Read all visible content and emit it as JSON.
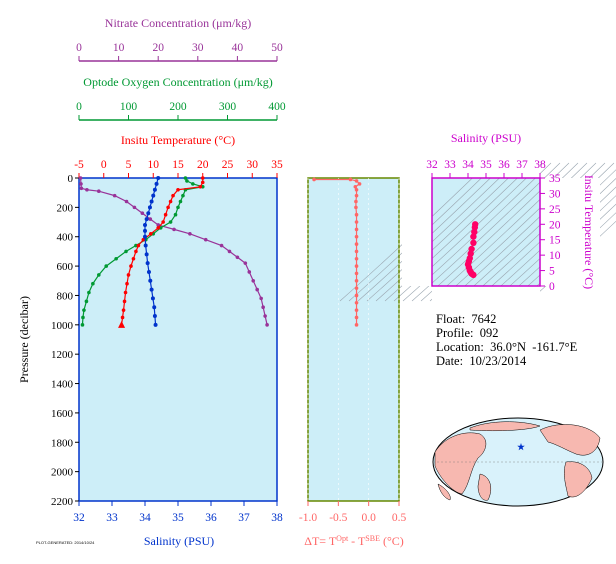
{
  "colors": {
    "nitrate": "#993399",
    "oxygen": "#009933",
    "temperature": "#ff0000",
    "salinity": "#0033cc",
    "dt": "#ff6666",
    "ts": "#cc00cc",
    "ts_points": "#ff0066",
    "panel_bg": "#cdeef8",
    "frame_main": "#0033cc",
    "frame_dt": "#668800",
    "land": "#f7b8b0",
    "ocean": "#d9f2fb",
    "star": "#0033cc"
  },
  "chart_data": [
    {
      "type": "line",
      "panel": "profiles",
      "ylabel": "Pressure (decibar)",
      "ylim": [
        2200,
        0
      ],
      "yticks": [
        0,
        200,
        400,
        600,
        800,
        1000,
        1200,
        1400,
        1600,
        1800,
        2000,
        2200
      ],
      "axes": {
        "nitrate": {
          "label": "Nitrate Concentration (μm/kg)",
          "range": [
            0,
            50
          ],
          "ticks": [
            0,
            10,
            20,
            30,
            40,
            50
          ]
        },
        "oxygen": {
          "label": "Optode Oxygen Concentration (μm/kg)",
          "range": [
            0,
            400
          ],
          "ticks": [
            0,
            100,
            200,
            300,
            400
          ]
        },
        "temperature": {
          "label": "Insitu Temperature (°C)",
          "range": [
            -5,
            35
          ],
          "ticks": [
            -5,
            0,
            5,
            10,
            15,
            20,
            25,
            30,
            35
          ]
        },
        "salinity": {
          "label": "Salinity (PSU)",
          "range": [
            32,
            38
          ],
          "ticks": [
            32,
            33,
            34,
            35,
            36,
            37,
            38
          ]
        }
      },
      "series": [
        {
          "key": "nitrate",
          "axis": "nitrate",
          "points": [
            [
              0.4,
              0
            ],
            [
              0.5,
              40
            ],
            [
              0.6,
              70
            ],
            [
              2,
              80
            ],
            [
              5,
              90
            ],
            [
              9,
              120
            ],
            [
              12,
              160
            ],
            [
              14,
              200
            ],
            [
              16,
              240
            ],
            [
              18,
              280
            ],
            [
              20,
              320
            ],
            [
              24,
              350
            ],
            [
              28,
              380
            ],
            [
              32,
              420
            ],
            [
              36,
              460
            ],
            [
              38,
              500
            ],
            [
              40,
              540
            ],
            [
              42,
              580
            ],
            [
              43,
              640
            ],
            [
              44,
              700
            ],
            [
              45,
              760
            ],
            [
              46,
              820
            ],
            [
              46.5,
              880
            ],
            [
              47,
              940
            ],
            [
              47.5,
              1000
            ]
          ]
        },
        {
          "key": "oxygen",
          "axis": "oxygen",
          "points": [
            [
              215,
              0
            ],
            [
              218,
              20
            ],
            [
              230,
              40
            ],
            [
              250,
              60
            ],
            [
              215,
              80
            ],
            [
              210,
              120
            ],
            [
              205,
              160
            ],
            [
              200,
              200
            ],
            [
              195,
              250
            ],
            [
              185,
              300
            ],
            [
              165,
              340
            ],
            [
              150,
              380
            ],
            [
              135,
              420
            ],
            [
              115,
              460
            ],
            [
              95,
              500
            ],
            [
              75,
              550
            ],
            [
              55,
              600
            ],
            [
              40,
              660
            ],
            [
              28,
              720
            ],
            [
              20,
              780
            ],
            [
              15,
              840
            ],
            [
              10,
              900
            ],
            [
              8,
              950
            ],
            [
              7,
              1000
            ]
          ]
        },
        {
          "key": "temperature",
          "axis": "temperature",
          "points": [
            [
              20,
              0
            ],
            [
              20,
              30
            ],
            [
              19.5,
              60
            ],
            [
              15,
              80
            ],
            [
              14,
              120
            ],
            [
              13.5,
              160
            ],
            [
              13,
              200
            ],
            [
              12.5,
              250
            ],
            [
              12,
              300
            ],
            [
              11,
              340
            ],
            [
              9.5,
              380
            ],
            [
              8,
              420
            ],
            [
              7,
              460
            ],
            [
              6.5,
              500
            ],
            [
              6,
              550
            ],
            [
              5.5,
              600
            ],
            [
              5,
              660
            ],
            [
              4.7,
              720
            ],
            [
              4.4,
              780
            ],
            [
              4.2,
              840
            ],
            [
              4,
              900
            ],
            [
              3.8,
              950
            ],
            [
              3.6,
              1000
            ]
          ]
        },
        {
          "key": "salinity",
          "axis": "salinity",
          "points": [
            [
              34.4,
              0
            ],
            [
              34.35,
              40
            ],
            [
              34.3,
              80
            ],
            [
              34.25,
              120
            ],
            [
              34.2,
              160
            ],
            [
              34.15,
              200
            ],
            [
              34.1,
              240
            ],
            [
              34.05,
              280
            ],
            [
              34.0,
              320
            ],
            [
              34.0,
              360
            ],
            [
              34.0,
              400
            ],
            [
              34.02,
              460
            ],
            [
              34.05,
              520
            ],
            [
              34.08,
              580
            ],
            [
              34.12,
              640
            ],
            [
              34.16,
              700
            ],
            [
              34.2,
              760
            ],
            [
              34.24,
              820
            ],
            [
              34.28,
              880
            ],
            [
              34.3,
              940
            ],
            [
              34.32,
              1000
            ]
          ]
        }
      ]
    },
    {
      "type": "line",
      "panel": "dt",
      "xlabel": "ΔT= T^Opt - T^SBE (°C)",
      "xlim": [
        -1.0,
        0.5
      ],
      "xticks": [
        -1.0,
        -0.5,
        0.0,
        0.5
      ],
      "xticklabels": [
        "-1.0",
        "-0.5",
        "0.0",
        "0.5"
      ],
      "ylim": [
        2200,
        0
      ],
      "series": [
        {
          "key": "dt",
          "points": [
            [
              -0.9,
              10
            ],
            [
              -0.3,
              10
            ],
            [
              -0.2,
              20
            ],
            [
              -0.15,
              40
            ],
            [
              -0.22,
              60
            ],
            [
              -0.2,
              80
            ],
            [
              -0.2,
              120
            ],
            [
              -0.21,
              160
            ],
            [
              -0.21,
              200
            ],
            [
              -0.2,
              250
            ],
            [
              -0.2,
              300
            ],
            [
              -0.2,
              350
            ],
            [
              -0.2,
              400
            ],
            [
              -0.2,
              450
            ],
            [
              -0.2,
              500
            ],
            [
              -0.2,
              550
            ],
            [
              -0.2,
              600
            ],
            [
              -0.2,
              650
            ],
            [
              -0.2,
              700
            ],
            [
              -0.2,
              750
            ],
            [
              -0.2,
              800
            ],
            [
              -0.2,
              850
            ],
            [
              -0.2,
              900
            ],
            [
              -0.2,
              950
            ],
            [
              -0.2,
              1000
            ]
          ]
        }
      ]
    },
    {
      "type": "scatter",
      "panel": "ts",
      "title": "Salinity (PSU)",
      "ylabel": "Insitu Temperature (°C)",
      "xlim": [
        32,
        38
      ],
      "ylim": [
        0,
        35
      ],
      "xticks": [
        32,
        33,
        34,
        35,
        36,
        37,
        38
      ],
      "yticks": [
        0,
        5,
        10,
        15,
        20,
        25,
        30,
        35
      ],
      "series": [
        {
          "key": "ts",
          "points": [
            [
              34.4,
              20.0
            ],
            [
              34.38,
              19.0
            ],
            [
              34.35,
              17.5
            ],
            [
              34.3,
              16.0
            ],
            [
              34.3,
              14.0
            ],
            [
              34.2,
              12.0
            ],
            [
              34.15,
              10.5
            ],
            [
              34.1,
              9.0
            ],
            [
              34.05,
              8.0
            ],
            [
              34.0,
              7.0
            ],
            [
              34.05,
              6.0
            ],
            [
              34.1,
              5.0
            ],
            [
              34.15,
              4.5
            ],
            [
              34.2,
              4.0
            ],
            [
              34.25,
              3.8
            ],
            [
              34.3,
              3.6
            ]
          ]
        }
      ]
    }
  ],
  "float_info": {
    "float": "Float:  7642",
    "profile": "Profile:  092",
    "location": "Location:  36.0°N  -161.7°E",
    "date": "Date:  10/23/2014"
  },
  "footer_small": "PLOT-GENERATED: 2014/10/24"
}
